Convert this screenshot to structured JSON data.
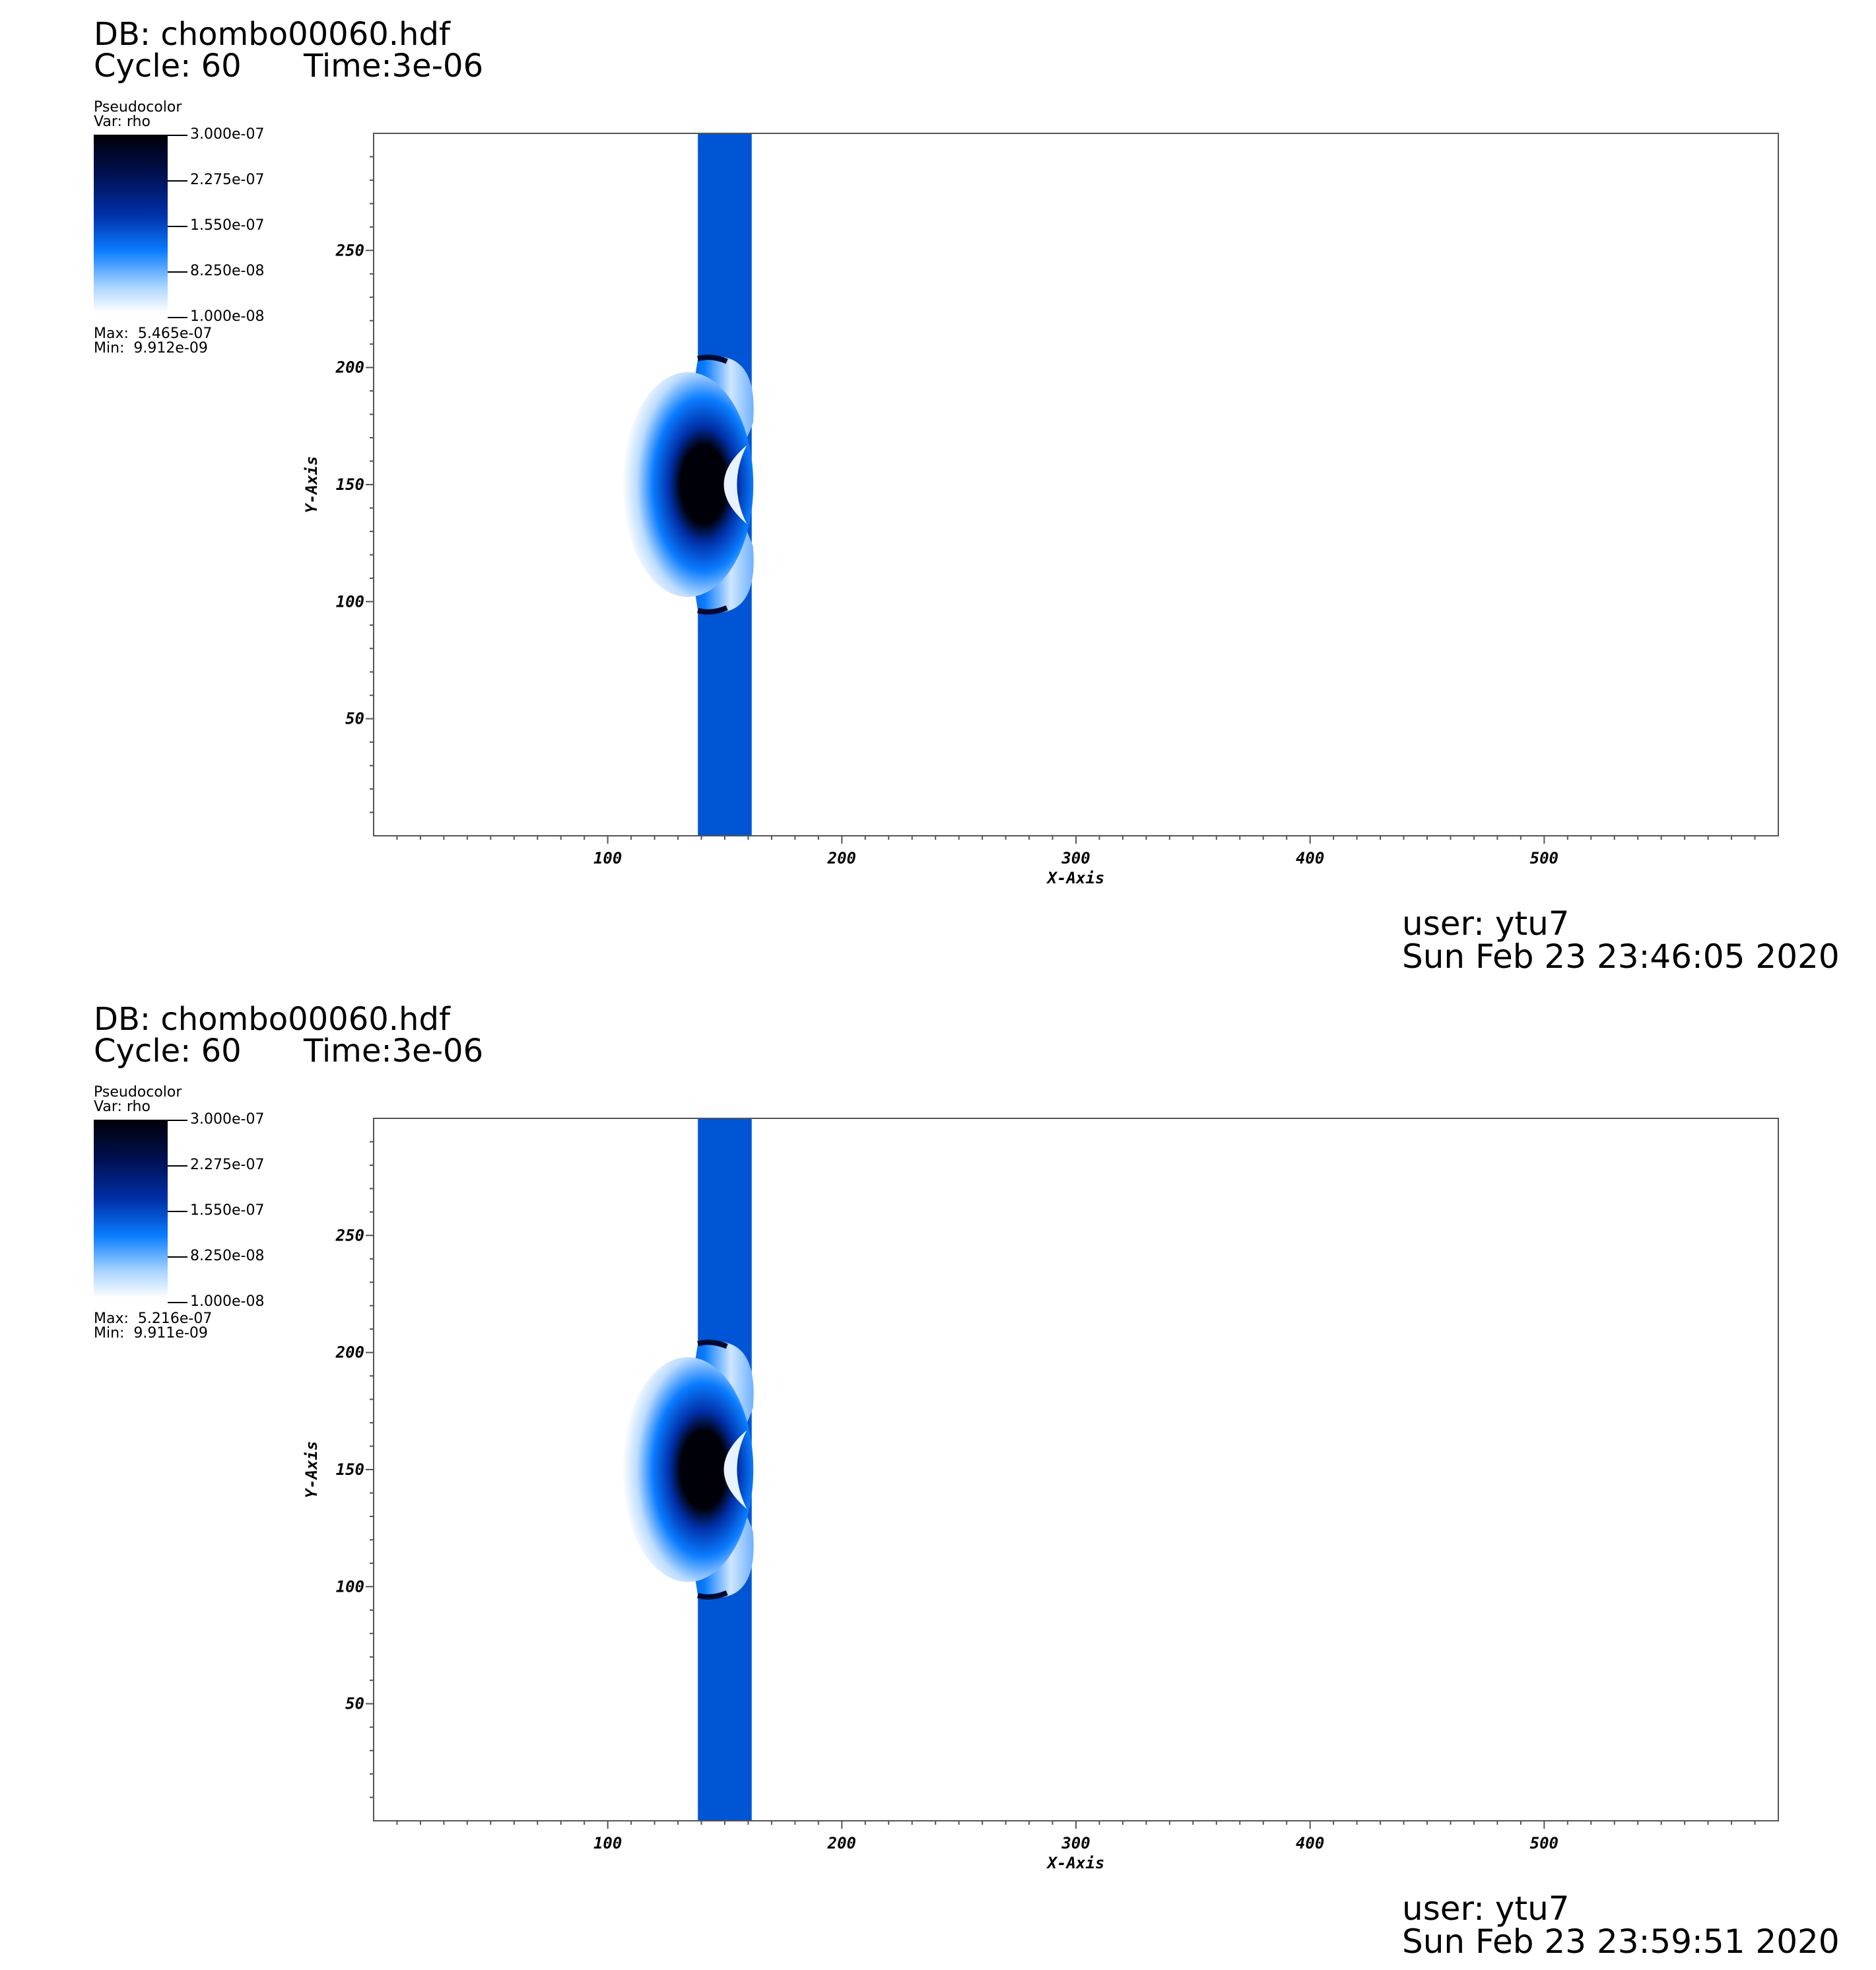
{
  "panels": [
    {
      "db": "DB: chombo00060.hdf",
      "cycle": "Cycle: 60",
      "time": "Time:3e-06",
      "legend": {
        "title": "Pseudocolor",
        "var": "Var: rho",
        "ticks": [
          "3.000e-07",
          "2.275e-07",
          "1.550e-07",
          "8.250e-08",
          "1.000e-08"
        ],
        "max": "Max:  5.465e-07",
        "min": "Min:  9.912e-09"
      },
      "user": "user: ytu7",
      "date": "Sun Feb 23 23:46:05 2020"
    },
    {
      "db": "DB: chombo00060.hdf",
      "cycle": "Cycle: 60",
      "time": "Time:3e-06",
      "legend": {
        "title": "Pseudocolor",
        "var": "Var: rho",
        "ticks": [
          "3.000e-07",
          "2.275e-07",
          "1.550e-07",
          "8.250e-08",
          "1.000e-08"
        ],
        "max": "Max:  5.216e-07",
        "min": "Min:  9.911e-09"
      },
      "user": "user: ytu7",
      "date": "Sun Feb 23 23:59:51 2020"
    }
  ],
  "chart_data": [
    {
      "type": "heatmap",
      "xlabel": "X-Axis",
      "ylabel": "Y-Axis",
      "xlim": [
        0,
        600
      ],
      "ylim": [
        0,
        300
      ],
      "xticks": [
        100,
        200,
        300,
        400,
        500
      ],
      "yticks": [
        50,
        100,
        150,
        200,
        250
      ],
      "colormap": {
        "low": "#ffffff",
        "mid": "#0a7cff",
        "high": "#000008"
      },
      "color_range": [
        1e-08,
        3e-07
      ],
      "features": {
        "band": {
          "x": [
            138.5,
            161.5
          ],
          "color": "#0055d4"
        },
        "bubble": {
          "center": [
            130,
            150
          ],
          "radius_x": 28,
          "radius_y": 48
        }
      }
    },
    {
      "type": "heatmap",
      "xlabel": "X-Axis",
      "ylabel": "Y-Axis",
      "xlim": [
        0,
        600
      ],
      "ylim": [
        0,
        300
      ],
      "xticks": [
        100,
        200,
        300,
        400,
        500
      ],
      "yticks": [
        50,
        100,
        150,
        200,
        250
      ],
      "colormap": {
        "low": "#ffffff",
        "mid": "#0a7cff",
        "high": "#000008"
      },
      "color_range": [
        1e-08,
        3e-07
      ],
      "features": {
        "band": {
          "x": [
            138.5,
            161.5
          ],
          "color": "#0055d4"
        },
        "bubble": {
          "center": [
            130,
            150
          ],
          "radius_x": 28,
          "radius_y": 48
        }
      }
    }
  ]
}
